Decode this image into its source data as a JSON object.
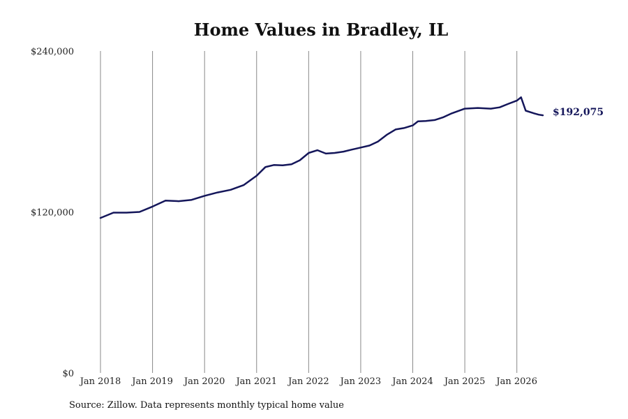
{
  "chart_data": {
    "type": "line",
    "title": "Home Values in Bradley, IL",
    "xlabel": "",
    "ylabel": "",
    "ylim": [
      0,
      240000
    ],
    "yticks": [
      {
        "value": 0,
        "label": "$0"
      },
      {
        "value": 120000,
        "label": "$120,000"
      },
      {
        "value": 240000,
        "label": "$240,000"
      }
    ],
    "xlim": [
      2018.0,
      2026.5
    ],
    "xticks": [
      {
        "value": 2018,
        "label": "Jan 2018"
      },
      {
        "value": 2019,
        "label": "Jan 2019"
      },
      {
        "value": 2020,
        "label": "Jan 2020"
      },
      {
        "value": 2021,
        "label": "Jan 2021"
      },
      {
        "value": 2022,
        "label": "Jan 2022"
      },
      {
        "value": 2023,
        "label": "Jan 2023"
      },
      {
        "value": 2024,
        "label": "Jan 2024"
      },
      {
        "value": 2025,
        "label": "Jan 2025"
      },
      {
        "value": 2026,
        "label": "Jan 2026"
      }
    ],
    "vertical_grid": true,
    "line_color": "#14165a",
    "grid_color": "#888888",
    "end_label": "$192,075",
    "series": [
      {
        "x": [
          2018.0,
          2018.25,
          2018.5,
          2018.75,
          2019.0,
          2019.25,
          2019.5,
          2019.75,
          2020.0,
          2020.25,
          2020.5,
          2020.75,
          2021.0,
          2021.17,
          2021.33,
          2021.5,
          2021.67,
          2021.83,
          2022.0,
          2022.17,
          2022.33,
          2022.5,
          2022.67,
          2022.83,
          2023.0,
          2023.17,
          2023.33,
          2023.5,
          2023.67,
          2023.83,
          2024.0,
          2024.1,
          2024.25,
          2024.42,
          2024.58,
          2024.75,
          2025.0,
          2025.25,
          2025.5,
          2025.67,
          2025.83,
          2026.0,
          2026.08,
          2026.17,
          2026.33,
          2026.42,
          2026.5
        ],
        "values": [
          115500,
          119500,
          119500,
          120000,
          124000,
          128500,
          128000,
          129000,
          132000,
          134500,
          136500,
          140000,
          147000,
          153500,
          155000,
          154800,
          155500,
          158500,
          164000,
          166000,
          163500,
          164000,
          165000,
          166500,
          168000,
          169500,
          172500,
          177500,
          181500,
          182500,
          184500,
          187500,
          187800,
          188500,
          190500,
          193500,
          197000,
          197500,
          197000,
          198000,
          200500,
          203000,
          205500,
          195500,
          193500,
          192500,
          192075
        ]
      }
    ]
  },
  "source": "Source: Zillow. Data represents monthly typical home value"
}
